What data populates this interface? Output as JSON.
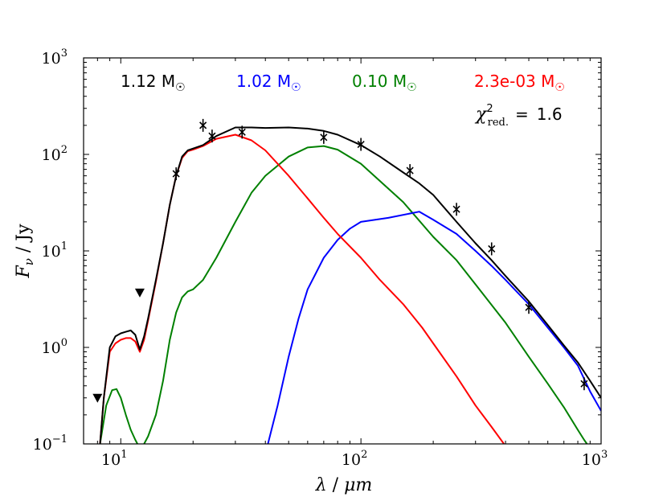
{
  "chart_data": {
    "type": "line",
    "xlabel": "λ / μm",
    "ylabel": "F_ν / Jy",
    "xlabel_main": "λ",
    "xlabel_unit": "μm",
    "ylabel_main": "F",
    "ylabel_sub": "ν",
    "ylabel_unit": "Jy",
    "xscale": "log",
    "yscale": "log",
    "xlim": [
      7,
      1000
    ],
    "ylim": [
      0.1,
      1000
    ],
    "x_ticks": [
      {
        "value": 10,
        "mantissa": "10",
        "exp": "1"
      },
      {
        "value": 100,
        "mantissa": "10",
        "exp": "2"
      },
      {
        "value": 1000,
        "mantissa": "10",
        "exp": "3"
      }
    ],
    "y_ticks": [
      {
        "value": 0.1,
        "mantissa": "10",
        "exp": "−1"
      },
      {
        "value": 1,
        "mantissa": "10",
        "exp": "0"
      },
      {
        "value": 10,
        "mantissa": "10",
        "exp": "1"
      },
      {
        "value": 100,
        "mantissa": "10",
        "exp": "2"
      },
      {
        "value": 1000,
        "mantissa": "10",
        "exp": "3"
      }
    ],
    "legend_position": "top",
    "series": [
      {
        "name": "1.12 M☉",
        "label_text": "1.12 M",
        "sun_symbol": "☉",
        "color": "#000000",
        "x": [
          8.2,
          8.5,
          9,
          9.5,
          10,
          10.5,
          11,
          11.5,
          12,
          12.5,
          13,
          14,
          15,
          16,
          17,
          18,
          19,
          20,
          22,
          25,
          30,
          35,
          40,
          50,
          60,
          70,
          80,
          100,
          120,
          150,
          175,
          200,
          250,
          300,
          350,
          400,
          500,
          600,
          700,
          800,
          900,
          1000
        ],
        "values": [
          0.1,
          0.3,
          1.0,
          1.3,
          1.4,
          1.45,
          1.5,
          1.35,
          0.95,
          1.3,
          2.0,
          5.0,
          12,
          30,
          60,
          95,
          110,
          115,
          125,
          155,
          190,
          190,
          188,
          190,
          185,
          175,
          160,
          125,
          95,
          65,
          50,
          38,
          20,
          12,
          8,
          5.5,
          3.0,
          1.7,
          1.05,
          0.7,
          0.45,
          0.3
        ]
      },
      {
        "name": "1.02 M☉",
        "label_text": "1.02 M",
        "sun_symbol": "☉",
        "color": "#0000ff",
        "x": [
          41,
          45,
          50,
          55,
          60,
          70,
          80,
          90,
          100,
          130,
          175,
          200,
          250,
          300,
          350,
          400,
          500,
          600,
          700,
          800,
          900,
          1000
        ],
        "values": [
          0.1,
          0.25,
          0.8,
          2.0,
          4.0,
          8.5,
          13,
          17,
          20,
          22,
          25.5,
          21,
          15,
          10,
          7,
          5,
          2.8,
          1.6,
          1.0,
          0.65,
          0.35,
          0.22
        ]
      },
      {
        "name": "0.10 M☉",
        "label_text": "0.10 M",
        "sun_symbol": "☉",
        "color": "#008000",
        "x": [
          8.2,
          8.7,
          9.2,
          9.6,
          10,
          10.5,
          11,
          11.5,
          12,
          12.5,
          13,
          14,
          15,
          16,
          17,
          18,
          19,
          20,
          22,
          25,
          30,
          35,
          40,
          50,
          60,
          70,
          80,
          100,
          150,
          200,
          250,
          300,
          400,
          500,
          600,
          700,
          800,
          850,
          900
        ],
        "values": [
          0.1,
          0.25,
          0.36,
          0.37,
          0.3,
          0.2,
          0.14,
          0.11,
          0.09,
          0.1,
          0.12,
          0.2,
          0.45,
          1.2,
          2.3,
          3.3,
          3.8,
          4.0,
          5.0,
          8.5,
          20,
          40,
          60,
          95,
          118,
          122,
          112,
          80,
          32,
          14,
          8,
          4.5,
          1.8,
          0.8,
          0.42,
          0.24,
          0.14,
          0.11,
          0.09
        ]
      },
      {
        "name": "2.3e-03 M☉",
        "label_text": "2.3e-03 M",
        "sun_symbol": "☉",
        "color": "#ff0000",
        "x": [
          8.2,
          8.5,
          9,
          9.5,
          10,
          10.5,
          11,
          11.5,
          12,
          12.5,
          13,
          14,
          15,
          16,
          17,
          18,
          19,
          20,
          22,
          25,
          30,
          35,
          40,
          50,
          60,
          70,
          80,
          100,
          120,
          150,
          180,
          200,
          250,
          300,
          350,
          400
        ],
        "values": [
          0.1,
          0.3,
          0.9,
          1.1,
          1.2,
          1.25,
          1.25,
          1.15,
          0.9,
          1.2,
          1.9,
          4.8,
          12,
          30,
          60,
          92,
          108,
          112,
          122,
          145,
          160,
          140,
          110,
          60,
          35,
          22,
          15,
          8.5,
          5.0,
          2.8,
          1.6,
          1.1,
          0.5,
          0.25,
          0.15,
          0.095
        ]
      }
    ],
    "measurements": [
      {
        "x": 17,
        "y": 63
      },
      {
        "x": 22,
        "y": 200
      },
      {
        "x": 24,
        "y": 155
      },
      {
        "x": 32,
        "y": 170
      },
      {
        "x": 70,
        "y": 150
      },
      {
        "x": 100,
        "y": 127
      },
      {
        "x": 160,
        "y": 68
      },
      {
        "x": 250,
        "y": 27
      },
      {
        "x": 350,
        "y": 10.5
      },
      {
        "x": 500,
        "y": 2.6
      },
      {
        "x": 850,
        "y": 0.42
      }
    ],
    "upper_limits": [
      {
        "x": 8,
        "y": 0.3
      },
      {
        "x": 12,
        "y": 3.7
      }
    ],
    "annotation": {
      "chi_symbol": "χ",
      "chi_sup": "2",
      "chi_sub": "red.",
      "equals": "=",
      "value": "1.6"
    }
  }
}
